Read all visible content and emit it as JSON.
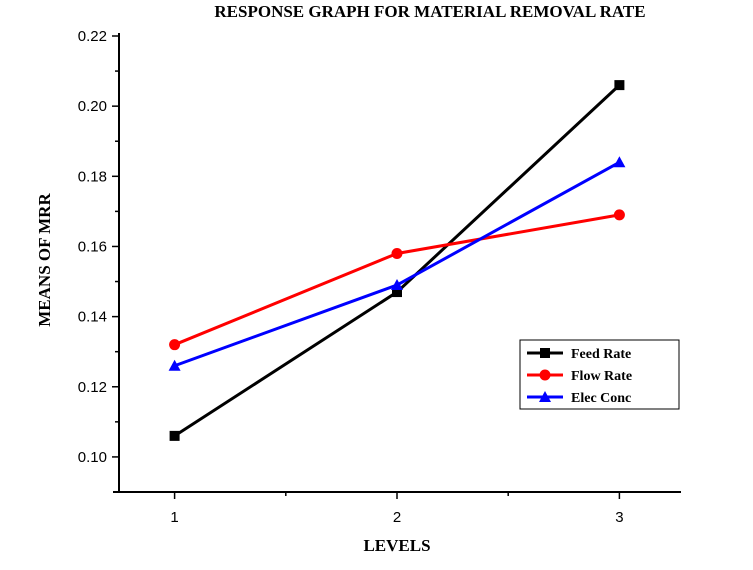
{
  "chart_data": {
    "type": "line",
    "title": "RESPONSE GRAPH FOR MATERIAL REMOVAL RATE",
    "xlabel": "LEVELS",
    "ylabel": "MEANS OF MRR",
    "x": [
      1,
      2,
      3
    ],
    "xticks": [
      "1",
      "2",
      "3"
    ],
    "yticks": [
      "0.10",
      "0.12",
      "0.14",
      "0.16",
      "0.18",
      "0.20",
      "0.22"
    ],
    "xlim": [
      0.75,
      3.25
    ],
    "ylim": [
      0.09,
      0.22
    ],
    "grid": false,
    "legend_position": "right",
    "series": [
      {
        "name": "Feed Rate",
        "values": [
          0.106,
          0.147,
          0.206
        ],
        "color": "#000000",
        "marker": "square"
      },
      {
        "name": "Flow Rate",
        "values": [
          0.132,
          0.158,
          0.169
        ],
        "color": "#ff0000",
        "marker": "circle"
      },
      {
        "name": "Elec Conc",
        "values": [
          0.126,
          0.149,
          0.184
        ],
        "color": "#0000ff",
        "marker": "triangle"
      }
    ]
  }
}
